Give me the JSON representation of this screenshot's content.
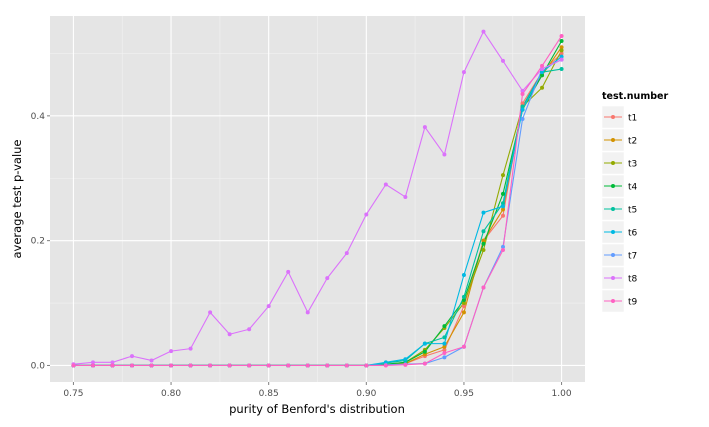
{
  "chart_data": {
    "type": "line",
    "xlabel": "purity of Benford's distribution",
    "ylabel": "average test p-value",
    "xlim": [
      0.738,
      1.012
    ],
    "ylim": [
      -0.0265,
      0.56
    ],
    "x_ticks": [
      0.75,
      0.8,
      0.85,
      0.9,
      0.95,
      1.0
    ],
    "x_tick_labels": [
      "0.75",
      "0.80",
      "0.85",
      "0.90",
      "0.95",
      "1.00"
    ],
    "y_ticks": [
      0.0,
      0.2,
      0.4
    ],
    "y_tick_labels": [
      "0.0",
      "0.2",
      "0.4"
    ],
    "grid": true,
    "legend_position": "right",
    "legend_title": "test.number",
    "x": [
      0.75,
      0.76,
      0.77,
      0.78,
      0.79,
      0.8,
      0.81,
      0.82,
      0.83,
      0.84,
      0.85,
      0.86,
      0.87,
      0.88,
      0.89,
      0.9,
      0.91,
      0.92,
      0.93,
      0.94,
      0.95,
      0.96,
      0.97,
      0.98,
      0.99,
      1.0
    ],
    "series": [
      {
        "name": "t1",
        "color": "#f8766d",
        "values": [
          0,
          0,
          0,
          0,
          0,
          0,
          0,
          0,
          0,
          0,
          0,
          0,
          0,
          0,
          0,
          0,
          0.001,
          0.003,
          0.015,
          0.025,
          0.095,
          0.2,
          0.24,
          0.42,
          0.47,
          0.5
        ]
      },
      {
        "name": "t2",
        "color": "#d39200",
        "values": [
          0,
          0,
          0,
          0,
          0,
          0,
          0,
          0,
          0,
          0,
          0,
          0,
          0,
          0,
          0,
          0,
          0.001,
          0.003,
          0.018,
          0.03,
          0.085,
          0.2,
          0.25,
          0.415,
          0.465,
          0.51
        ]
      },
      {
        "name": "t3",
        "color": "#93aa00",
        "values": [
          0,
          0,
          0,
          0,
          0,
          0,
          0,
          0,
          0,
          0,
          0,
          0,
          0,
          0,
          0,
          0,
          0.001,
          0.005,
          0.025,
          0.06,
          0.1,
          0.185,
          0.305,
          0.415,
          0.445,
          0.505
        ]
      },
      {
        "name": "t4",
        "color": "#00ba38",
        "values": [
          0,
          0,
          0,
          0,
          0,
          0,
          0,
          0,
          0,
          0,
          0,
          0,
          0,
          0,
          0,
          0,
          0.002,
          0.005,
          0.022,
          0.063,
          0.105,
          0.195,
          0.275,
          0.41,
          0.465,
          0.52
        ]
      },
      {
        "name": "t5",
        "color": "#00c19f",
        "values": [
          0,
          0,
          0,
          0,
          0,
          0,
          0,
          0,
          0,
          0,
          0,
          0,
          0,
          0,
          0,
          0,
          0.004,
          0.008,
          0.035,
          0.045,
          0.11,
          0.215,
          0.26,
          0.415,
          0.47,
          0.475
        ]
      },
      {
        "name": "t6",
        "color": "#00b9e3",
        "values": [
          0,
          0,
          0,
          0,
          0,
          0,
          0,
          0,
          0,
          0,
          0,
          0,
          0,
          0,
          0,
          0,
          0.005,
          0.01,
          0.035,
          0.035,
          0.145,
          0.245,
          0.255,
          0.41,
          0.47,
          0.495
        ]
      },
      {
        "name": "t7",
        "color": "#619cff",
        "values": [
          0,
          0,
          0,
          0,
          0,
          0,
          0,
          0,
          0,
          0,
          0,
          0,
          0,
          0,
          0,
          0,
          0.001,
          0.002,
          0.003,
          0.013,
          0.03,
          0.125,
          0.19,
          0.395,
          0.475,
          0.49
        ]
      },
      {
        "name": "t8",
        "color": "#db72fb",
        "values": [
          0.002,
          0.005,
          0.005,
          0.015,
          0.008,
          0.023,
          0.027,
          0.085,
          0.05,
          0.058,
          0.095,
          0.15,
          0.085,
          0.14,
          0.18,
          0.242,
          0.29,
          0.27,
          0.382,
          0.338,
          0.47,
          0.535,
          0.488,
          0.44,
          0.475,
          0.49
        ]
      },
      {
        "name": "t9",
        "color": "#ff61c3",
        "values": [
          0,
          0,
          0,
          0,
          0,
          0,
          0,
          0,
          0,
          0,
          0,
          0,
          0,
          0,
          0,
          0,
          0,
          0.001,
          0.003,
          0.02,
          0.03,
          0.125,
          0.185,
          0.435,
          0.48,
          0.528
        ]
      }
    ]
  }
}
